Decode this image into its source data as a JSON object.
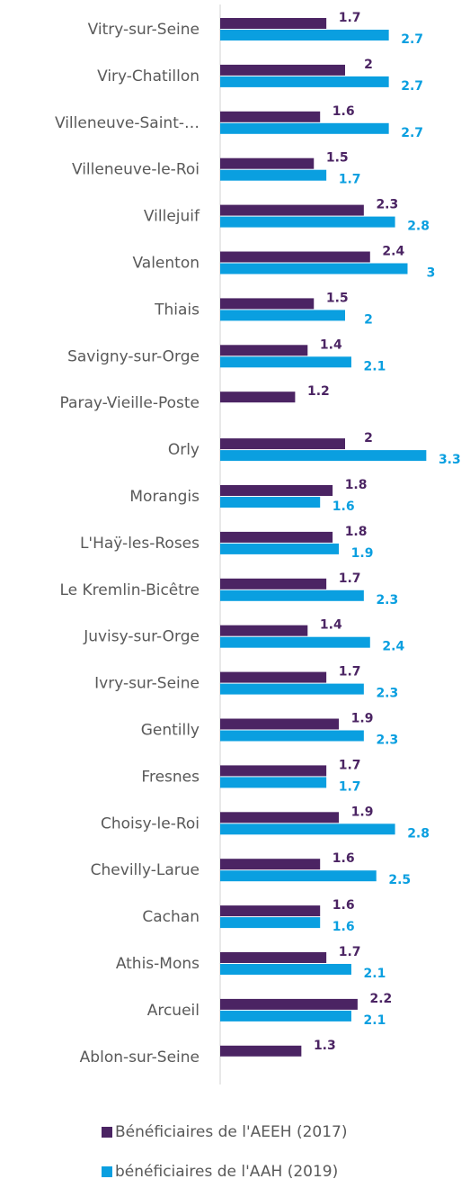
{
  "chart_data": {
    "type": "bar",
    "orientation": "horizontal",
    "categories": [
      "Vitry-sur-Seine",
      "Viry-Chatillon",
      "Villeneuve-Saint-…",
      "Villeneuve-le-Roi",
      "Villejuif",
      "Valenton",
      "Thiais",
      "Savigny-sur-Orge",
      "Paray-Vieille-Poste",
      "Orly",
      "Morangis",
      "L'Haÿ-les-Roses",
      "Le Kremlin-Bicêtre",
      "Juvisy-sur-Orge",
      "Ivry-sur-Seine",
      "Gentilly",
      "Fresnes",
      "Choisy-le-Roi",
      "Chevilly-Larue",
      "Cachan",
      "Athis-Mons",
      "Arcueil",
      "Ablon-sur-Seine"
    ],
    "series": [
      {
        "name": "Bénéficiaires de l'AEEH (2017)",
        "color": "#4b2463",
        "values": [
          1.7,
          2,
          1.6,
          1.5,
          2.3,
          2.4,
          1.5,
          1.4,
          1.2,
          2,
          1.8,
          1.8,
          1.7,
          1.4,
          1.7,
          1.9,
          1.7,
          1.9,
          1.6,
          1.6,
          1.7,
          2.2,
          1.3
        ]
      },
      {
        "name": "bénéficiaires de l'AAH (2019)",
        "color": "#0a9fe0",
        "values": [
          2.7,
          2.7,
          2.7,
          1.7,
          2.8,
          3,
          2,
          2.1,
          null,
          3.3,
          1.6,
          1.9,
          2.3,
          2.4,
          2.3,
          2.3,
          1.7,
          2.8,
          2.5,
          1.6,
          2.1,
          2.1,
          null
        ]
      }
    ],
    "xlim": [
      0,
      4
    ],
    "legend": "bottom"
  }
}
